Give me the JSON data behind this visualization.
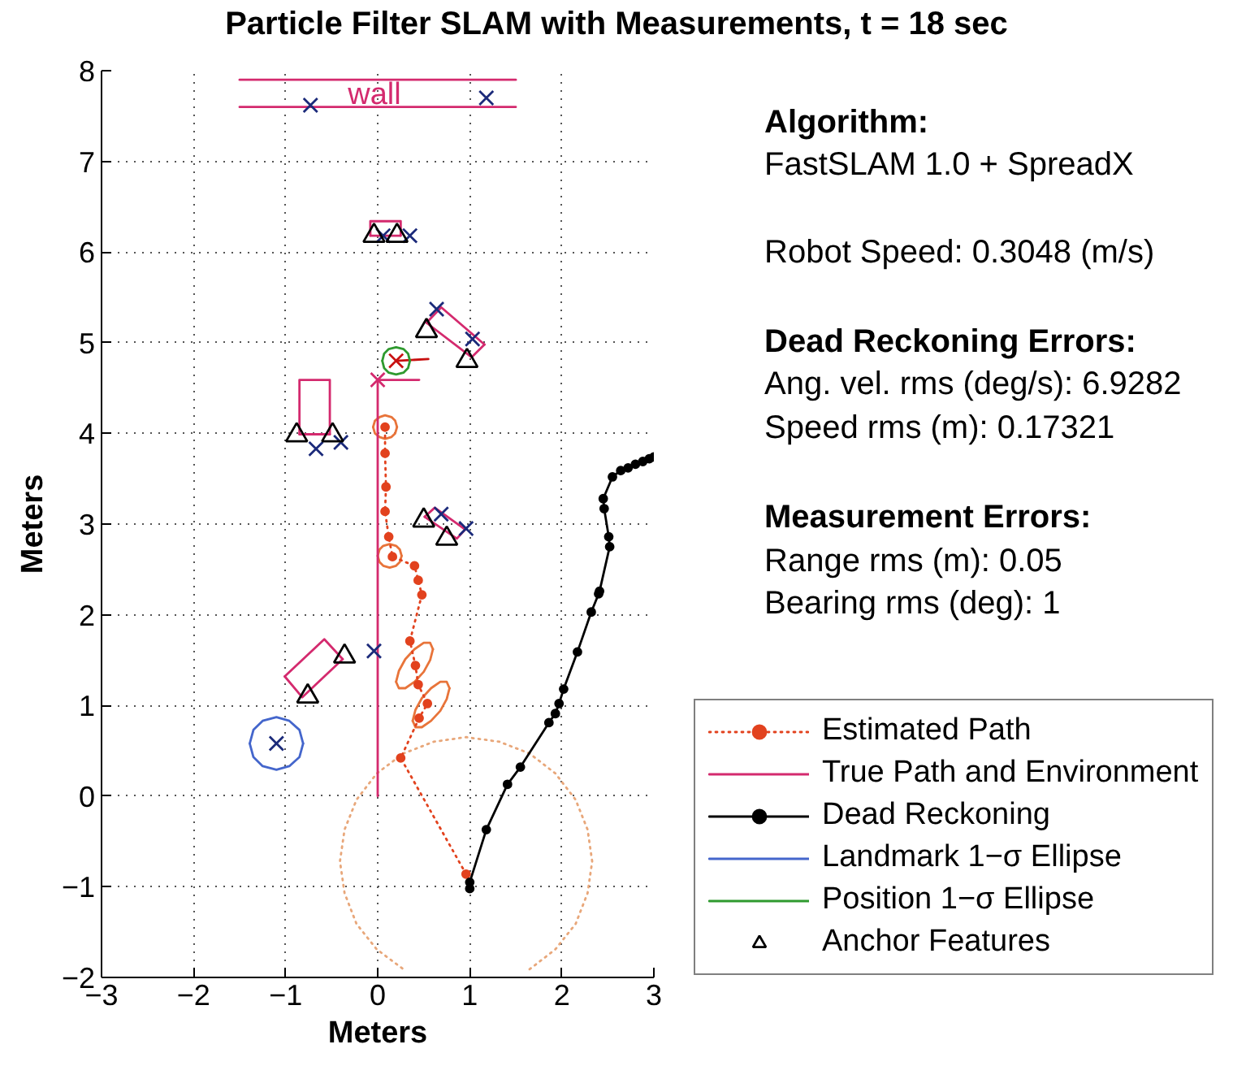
{
  "chart_data": {
    "type": "line",
    "title": "Particle Filter SLAM with Measurements, t = 18 sec",
    "xlabel": "Meters",
    "ylabel": "Meters",
    "xlim": [
      -3,
      3
    ],
    "ylim": [
      -2,
      8
    ],
    "xticks": [
      -3,
      -2,
      -1,
      0,
      1,
      2,
      3
    ],
    "yticks": [
      -2,
      -1,
      0,
      1,
      2,
      3,
      4,
      5,
      6,
      7,
      8
    ],
    "grid": true,
    "legend": "bottom right",
    "annotations": [
      "Algorithm:",
      "FastSLAM 1.0 + SpreadX",
      "Robot Speed: 0.3048 (m/s)",
      "Dead Reckoning Errors:",
      "Ang. vel. rms (deg/s): 6.9282",
      "Speed rms (m): 0.17321",
      "Measurement Errors:",
      "Range rms (m): 0.05",
      "Bearing rms (deg): 1",
      "wall"
    ],
    "series": [
      {
        "color": "#e8a77a",
        "line_style": "dotted",
        "x": [
          2.33,
          2.28,
          2.15,
          1.93,
          1.65,
          1.32,
          0.96,
          0.61,
          0.28,
          -0.01,
          -0.23,
          -0.36,
          -0.41,
          -0.36,
          -0.23,
          -0.01,
          0.28,
          null,
          1.65,
          1.93,
          2.15,
          2.28,
          2.33
        ],
        "values": [
          -0.72,
          -0.37,
          -0.04,
          0.25,
          0.47,
          0.6,
          0.65,
          0.6,
          0.47,
          0.25,
          -0.04,
          -0.37,
          -0.72,
          -1.07,
          -1.41,
          -1.69,
          -1.91,
          null,
          -1.91,
          -1.69,
          -1.41,
          -1.07,
          -0.72
        ]
      },
      {
        "color": "#e8743a",
        "x": [
          -0.05,
          -0.03,
          0.02,
          0.08,
          0.15,
          0.19,
          0.21
        ],
        "values": [
          4.07,
          4.14,
          4.18,
          4.2,
          4.18,
          4.14,
          4.07
        ]
      },
      {
        "color": "#e8743a",
        "x": [
          -0.05,
          -0.03,
          0.02,
          0.08,
          0.15,
          0.19,
          0.21
        ],
        "values": [
          4.07,
          4.0,
          3.96,
          3.94,
          3.96,
          4.0,
          4.07
        ]
      },
      {
        "color": "#e8743a",
        "x": [
          0.0,
          0.02,
          0.06,
          0.13,
          0.2,
          0.24,
          0.26
        ],
        "values": [
          2.65,
          2.72,
          2.76,
          2.78,
          2.76,
          2.72,
          2.65
        ]
      },
      {
        "color": "#e8743a",
        "x": [
          0.0,
          0.02,
          0.06,
          0.13,
          0.2,
          0.24,
          0.26
        ],
        "values": [
          2.65,
          2.58,
          2.54,
          2.52,
          2.54,
          2.58,
          2.65
        ]
      },
      {
        "color": "#e8743a",
        "x": [
          0.2,
          0.23,
          0.3,
          0.4,
          0.5,
          0.57,
          0.6
        ],
        "values": [
          1.26,
          1.38,
          1.51,
          1.62,
          1.69,
          1.69,
          1.62
        ]
      },
      {
        "color": "#e8743a",
        "x": [
          0.2,
          0.23,
          0.3,
          0.4,
          0.5,
          0.57,
          0.6
        ],
        "values": [
          1.26,
          1.19,
          1.19,
          1.26,
          1.37,
          1.5,
          1.62
        ]
      },
      {
        "color": "#e8743a",
        "x": [
          0.38,
          0.41,
          0.48,
          0.58,
          0.68,
          0.75,
          0.78
        ],
        "values": [
          0.83,
          0.95,
          1.08,
          1.19,
          1.26,
          1.26,
          1.19
        ]
      },
      {
        "color": "#e8743a",
        "x": [
          0.38,
          0.41,
          0.48,
          0.58,
          0.68,
          0.75,
          0.78
        ],
        "values": [
          0.83,
          0.76,
          0.76,
          0.83,
          0.94,
          1.07,
          1.19
        ]
      },
      {
        "name": "Estimated Path",
        "color": "#e2421e",
        "line_style": "dotted",
        "marker": "circle",
        "x": [
          0.96,
          0.25,
          0.45,
          0.54,
          0.44,
          0.41,
          0.35,
          0.48,
          0.44,
          0.4,
          0.16,
          0.12,
          0.08,
          0.09,
          0.08,
          0.08
        ],
        "values": [
          -0.86,
          0.42,
          0.86,
          1.02,
          1.23,
          1.44,
          1.71,
          2.22,
          2.38,
          2.54,
          2.64,
          2.86,
          3.14,
          3.41,
          3.78,
          4.07
        ]
      },
      {
        "color": "#d42a6e",
        "x": [
          -1.5,
          1.5
        ],
        "values": [
          7.9,
          7.9
        ]
      },
      {
        "color": "#d42a6e",
        "x": [
          -1.5,
          1.5
        ],
        "values": [
          7.6,
          7.6
        ]
      },
      {
        "color": "#d42a6e",
        "x": [
          -0.08,
          -0.08,
          0.25,
          0.25
        ],
        "values": [
          6.18,
          6.34,
          6.34,
          6.18
        ]
      },
      {
        "color": "#d42a6e",
        "x": [
          -0.08,
          0.25
        ],
        "values": [
          6.18,
          6.18
        ]
      },
      {
        "color": "#d42a6e",
        "x": [
          0.53,
          0.69,
          1.16
        ],
        "values": [
          5.22,
          5.39,
          4.98
        ]
      },
      {
        "color": "#d42a6e",
        "x": [
          0.53,
          1.02,
          1.16
        ],
        "values": [
          5.22,
          4.84,
          4.98
        ]
      },
      {
        "color": "#d42a6e",
        "x": [
          -0.85,
          -0.85,
          -0.52,
          -0.52
        ],
        "values": [
          3.99,
          4.59,
          4.59,
          3.99
        ]
      },
      {
        "color": "#d42a6e",
        "x": [
          -0.85,
          -0.52
        ],
        "values": [
          3.99,
          3.99
        ]
      },
      {
        "color": "#d42a6e",
        "x": [
          0.51,
          0.62,
          0.95
        ],
        "values": [
          3.08,
          3.18,
          2.94
        ]
      },
      {
        "color": "#d42a6e",
        "x": [
          0.51,
          0.86,
          0.95
        ],
        "values": [
          3.08,
          2.84,
          2.94
        ]
      },
      {
        "color": "#d42a6e",
        "x": [
          -1.01,
          -0.58,
          -0.38
        ],
        "values": [
          1.32,
          1.73,
          1.51
        ]
      },
      {
        "color": "#d42a6e",
        "x": [
          -1.01,
          -0.82,
          -0.38
        ],
        "values": [
          1.32,
          1.09,
          1.51
        ]
      },
      {
        "color": "#d42a6e",
        "x": [
          0,
          0.45
        ],
        "values": [
          4.59,
          4.59
        ]
      },
      {
        "name": "True Path and Environment",
        "color": "#d42a6e",
        "x": [
          0,
          0
        ],
        "values": [
          0,
          4.59
        ]
      },
      {
        "name": "Dead Reckoning",
        "color": "#000000",
        "marker": "circle",
        "x": [
          1.0,
          1.0,
          1.18,
          1.41,
          1.55,
          1.86,
          1.93,
          1.97,
          2.02,
          2.17,
          2.32,
          2.4,
          2.41,
          2.52,
          2.51,
          2.46,
          2.45,
          2.55,
          2.64,
          2.72,
          2.8,
          2.88,
          2.95,
          3.0
        ],
        "values": [
          -1.02,
          -0.95,
          -0.37,
          0.13,
          0.32,
          0.81,
          0.91,
          1.02,
          1.18,
          1.59,
          2.03,
          2.23,
          2.26,
          2.75,
          2.86,
          3.17,
          3.28,
          3.52,
          3.59,
          3.62,
          3.66,
          3.69,
          3.72,
          3.74
        ]
      },
      {
        "name": "Landmark 1−σ Ellipse",
        "color": "#4466cc",
        "x": [
          -1.39,
          -1.35,
          -1.25,
          -1.1,
          -0.96,
          -0.85,
          -0.81
        ],
        "values": [
          0.58,
          0.73,
          0.83,
          0.87,
          0.83,
          0.73,
          0.58
        ]
      },
      {
        "color": "#4466cc",
        "x": [
          -1.39,
          -1.35,
          -1.25,
          -1.1,
          -0.96,
          -0.85,
          -0.81
        ],
        "values": [
          0.58,
          0.43,
          0.33,
          0.29,
          0.33,
          0.43,
          0.58
        ]
      },
      {
        "color": "#c81010",
        "x": [
          0.2,
          0.55
        ],
        "values": [
          4.8,
          4.82
        ]
      },
      {
        "type": "scatter",
        "color": "#c81010",
        "marker": "cross",
        "x": [
          0.2
        ],
        "values": [
          4.8
        ]
      },
      {
        "type": "scatter",
        "color": "#d42a6e",
        "marker": "cross",
        "x": [
          0
        ],
        "values": [
          4.59
        ]
      },
      {
        "name": "Position 1−σ Ellipse",
        "color": "#2f9a2f",
        "x": [
          0.05,
          0.07,
          0.12,
          0.2,
          0.28,
          0.33,
          0.35
        ],
        "values": [
          4.8,
          4.88,
          4.93,
          4.95,
          4.93,
          4.88,
          4.8
        ]
      },
      {
        "color": "#2f9a2f",
        "x": [
          0.05,
          0.07,
          0.12,
          0.2,
          0.28,
          0.33,
          0.35
        ],
        "values": [
          4.8,
          4.72,
          4.67,
          4.65,
          4.67,
          4.72,
          4.8
        ]
      },
      {
        "type": "scatter",
        "color": "#1b2a7a",
        "marker": "cross",
        "x": [
          -0.73,
          1.18,
          0.06,
          0.35,
          0.64,
          1.03,
          -0.67,
          -0.4,
          0.69,
          0.96,
          -0.04,
          -1.1
        ],
        "values": [
          7.62,
          7.7,
          6.18,
          6.18,
          5.37,
          5.04,
          3.83,
          3.9,
          3.11,
          2.95,
          1.6,
          0.58
        ]
      },
      {
        "type": "scatter",
        "name": "Anchor Features",
        "color": "#000000",
        "marker": "triangle",
        "x": [
          -0.04,
          0.21,
          0.53,
          0.97,
          -0.88,
          -0.49,
          0.5,
          0.75,
          -0.36,
          -0.76
        ],
        "values": [
          6.18,
          6.18,
          5.13,
          4.8,
          3.98,
          3.98,
          3.04,
          2.84,
          1.54,
          1.1
        ]
      }
    ]
  }
}
